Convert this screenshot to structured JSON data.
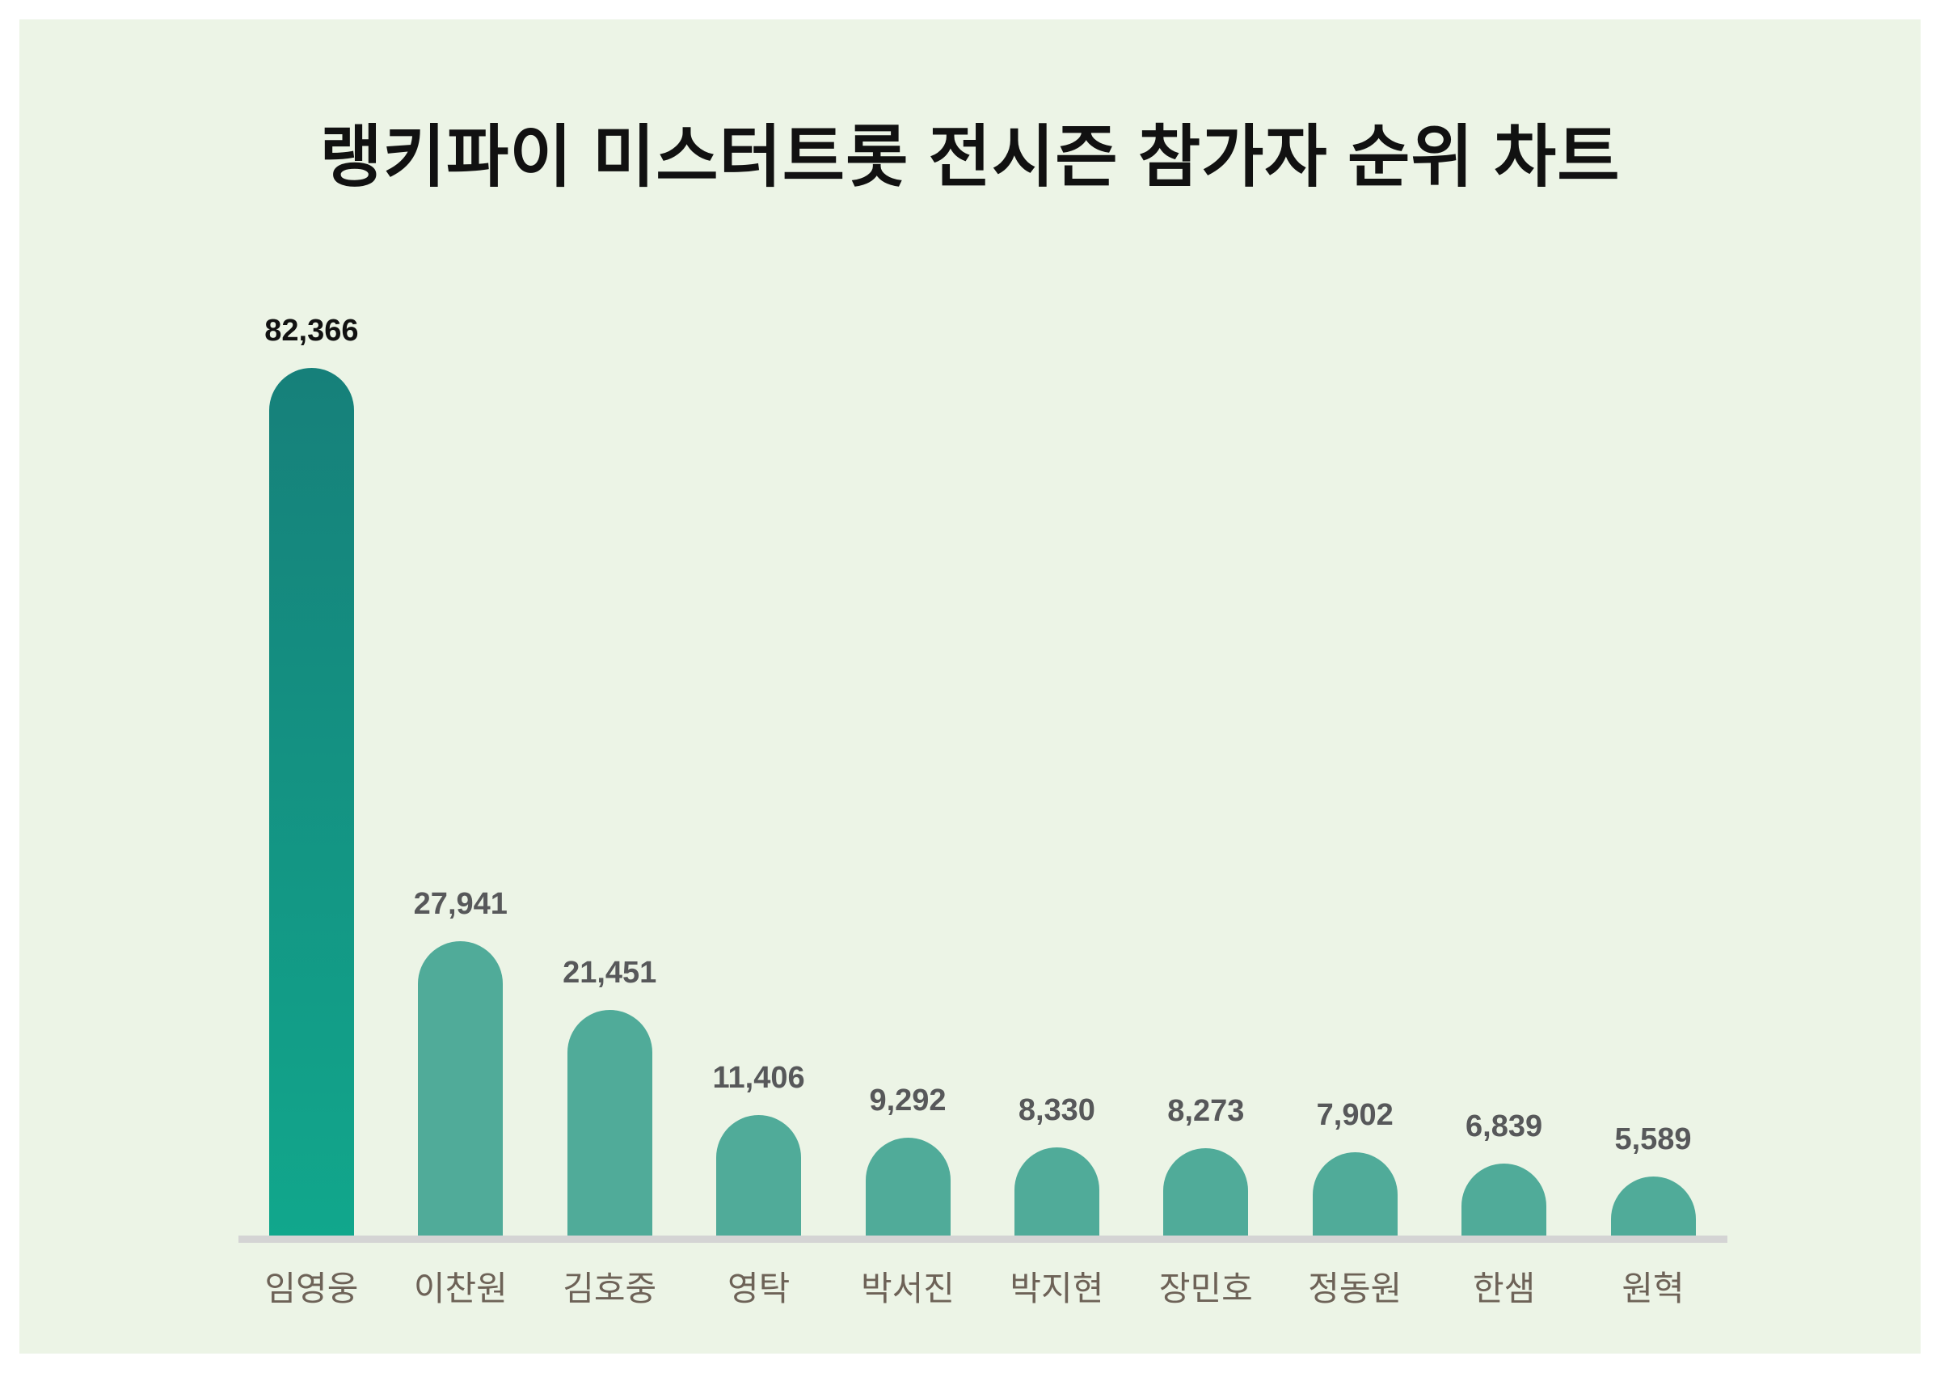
{
  "page": {
    "title": "랭키파이 미스터트롯 전시즌 참가자 순위 차트"
  },
  "colors": {
    "page_background": "#ffffff",
    "panel_background": "#ecf4e6",
    "bar_default": "#50ab99",
    "bar_highlight_gradient_top": "#16807a",
    "bar_highlight_gradient_bottom": "#11a78c",
    "axis_line": "#d4d4d4",
    "value_label": "#57585a",
    "value_label_highlight": "#111111",
    "category_label": "#6d6257",
    "title_text": "#111111"
  },
  "chart_data": {
    "type": "bar",
    "title": "랭키파이 미스터트롯 전시즌 참가자 순위 차트",
    "categories": [
      "임영웅",
      "이찬원",
      "김호중",
      "영탁",
      "박서진",
      "박지현",
      "장민호",
      "정동원",
      "한샘",
      "원혁"
    ],
    "values": [
      82366,
      27941,
      21451,
      11406,
      9292,
      8330,
      8273,
      7902,
      6839,
      5589
    ],
    "value_labels": [
      "82,366",
      "27,941",
      "21,451",
      "11,406",
      "9,292",
      "8,330",
      "8,273",
      "7,902",
      "6,839",
      "5,589"
    ],
    "highlight_index": 0,
    "xlabel": "",
    "ylabel": "",
    "ylim": [
      0,
      82366
    ],
    "grid": false,
    "legend": null,
    "orientation": "vertical",
    "bar_style": "rounded-top"
  }
}
